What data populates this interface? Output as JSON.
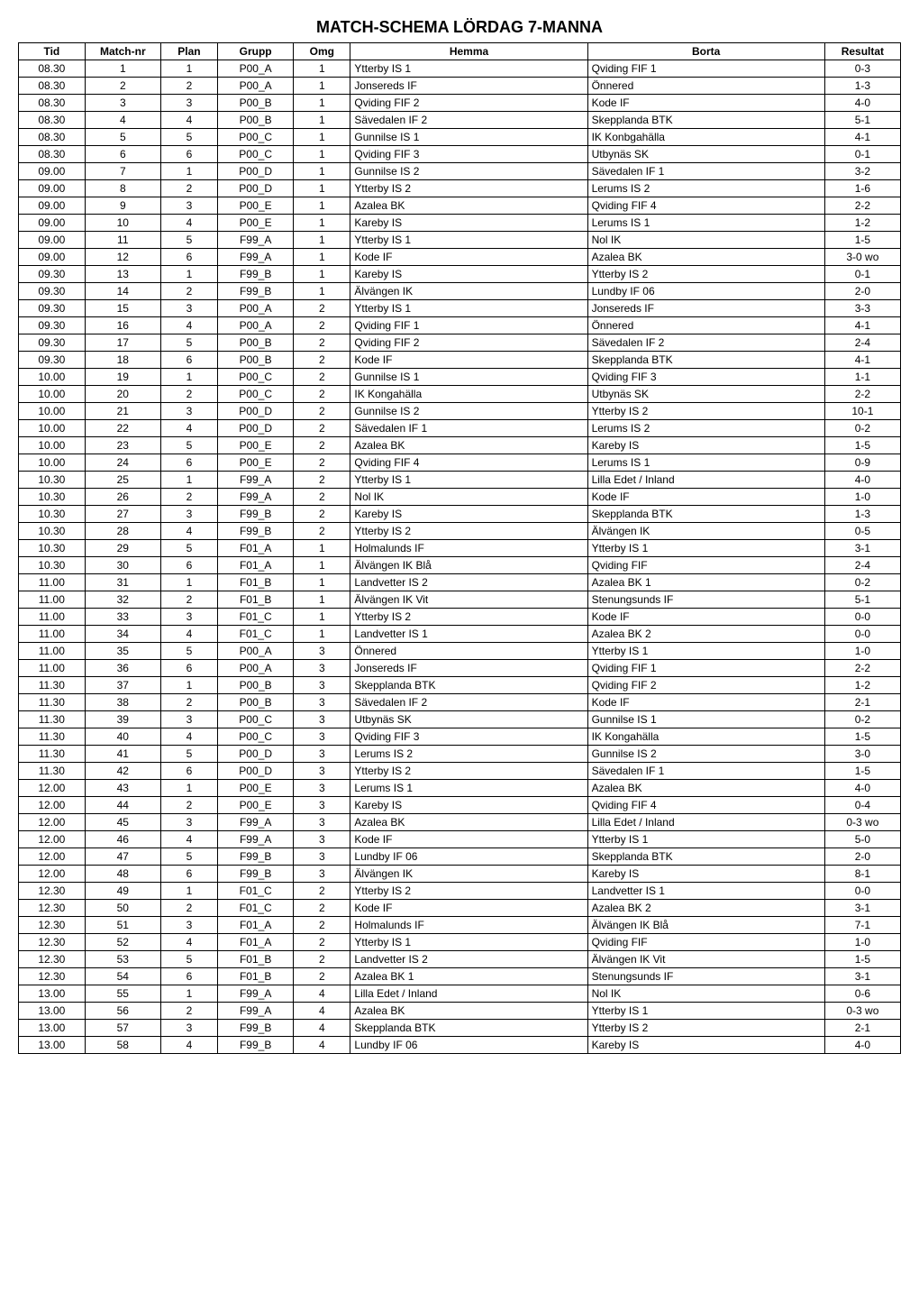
{
  "title": "MATCH-SCHEMA LÖRDAG 7-MANNA",
  "columns": [
    "Tid",
    "Match-nr",
    "Plan",
    "Grupp",
    "Omg",
    "Hemma",
    "Borta",
    "Resultat"
  ],
  "col_align": [
    "center",
    "center",
    "center",
    "center",
    "center",
    "left",
    "left",
    "center"
  ],
  "rows": [
    [
      "08.30",
      "1",
      "1",
      "P00_A",
      "1",
      "Ytterby IS 1",
      "Qviding FIF 1",
      "0-3"
    ],
    [
      "08.30",
      "2",
      "2",
      "P00_A",
      "1",
      "Jonsereds IF",
      "Önnered",
      "1-3"
    ],
    [
      "08.30",
      "3",
      "3",
      "P00_B",
      "1",
      "Qviding FIF 2",
      "Kode IF",
      "4-0"
    ],
    [
      "08.30",
      "4",
      "4",
      "P00_B",
      "1",
      "Sävedalen IF 2",
      "Skepplanda BTK",
      "5-1"
    ],
    [
      "08.30",
      "5",
      "5",
      "P00_C",
      "1",
      "Gunnilse IS 1",
      "IK Konbgahälla",
      "4-1"
    ],
    [
      "08.30",
      "6",
      "6",
      "P00_C",
      "1",
      "Qviding FIF 3",
      "Utbynäs SK",
      "0-1"
    ],
    [
      "09.00",
      "7",
      "1",
      "P00_D",
      "1",
      "Gunnilse IS 2",
      "Sävedalen IF 1",
      "3-2"
    ],
    [
      "09.00",
      "8",
      "2",
      "P00_D",
      "1",
      "Ytterby IS 2",
      "Lerums IS 2",
      "1-6"
    ],
    [
      "09.00",
      "9",
      "3",
      "P00_E",
      "1",
      "Azalea BK",
      "Qviding FIF 4",
      "2-2"
    ],
    [
      "09.00",
      "10",
      "4",
      "P00_E",
      "1",
      "Kareby IS",
      "Lerums IS 1",
      "1-2"
    ],
    [
      "09.00",
      "11",
      "5",
      "F99_A",
      "1",
      "Ytterby IS 1",
      "Nol IK",
      "1-5"
    ],
    [
      "09.00",
      "12",
      "6",
      "F99_A",
      "1",
      "Kode IF",
      "Azalea BK",
      "3-0 wo"
    ],
    [
      "09.30",
      "13",
      "1",
      "F99_B",
      "1",
      "Kareby IS",
      "Ytterby IS 2",
      "0-1"
    ],
    [
      "09.30",
      "14",
      "2",
      "F99_B",
      "1",
      "Älvängen IK",
      "Lundby IF 06",
      "2-0"
    ],
    [
      "09.30",
      "15",
      "3",
      "P00_A",
      "2",
      "Ytterby IS 1",
      "Jonsereds IF",
      "3-3"
    ],
    [
      "09.30",
      "16",
      "4",
      "P00_A",
      "2",
      "Qviding FIF 1",
      "Önnered",
      "4-1"
    ],
    [
      "09.30",
      "17",
      "5",
      "P00_B",
      "2",
      "Qviding FIF 2",
      "Sävedalen IF 2",
      "2-4"
    ],
    [
      "09.30",
      "18",
      "6",
      "P00_B",
      "2",
      "Kode IF",
      "Skepplanda BTK",
      "4-1"
    ],
    [
      "10.00",
      "19",
      "1",
      "P00_C",
      "2",
      "Gunnilse IS 1",
      "Qviding FIF 3",
      "1-1"
    ],
    [
      "10.00",
      "20",
      "2",
      "P00_C",
      "2",
      "IK Kongahälla",
      "Utbynäs SK",
      "2-2"
    ],
    [
      "10.00",
      "21",
      "3",
      "P00_D",
      "2",
      "Gunnilse IS 2",
      "Ytterby IS 2",
      "10-1"
    ],
    [
      "10.00",
      "22",
      "4",
      "P00_D",
      "2",
      "Sävedalen IF 1",
      "Lerums IS 2",
      "0-2"
    ],
    [
      "10.00",
      "23",
      "5",
      "P00_E",
      "2",
      "Azalea BK",
      "Kareby IS",
      "1-5"
    ],
    [
      "10.00",
      "24",
      "6",
      "P00_E",
      "2",
      "Qviding FIF 4",
      "Lerums IS 1",
      "0-9"
    ],
    [
      "10.30",
      "25",
      "1",
      "F99_A",
      "2",
      "Ytterby IS 1",
      "Lilla Edet / Inland",
      "4-0"
    ],
    [
      "10.30",
      "26",
      "2",
      "F99_A",
      "2",
      "Nol IK",
      "Kode IF",
      "1-0"
    ],
    [
      "10.30",
      "27",
      "3",
      "F99_B",
      "2",
      "Kareby IS",
      "Skepplanda BTK",
      "1-3"
    ],
    [
      "10.30",
      "28",
      "4",
      "F99_B",
      "2",
      "Ytterby IS 2",
      "Älvängen IK",
      "0-5"
    ],
    [
      "10.30",
      "29",
      "5",
      "F01_A",
      "1",
      "Holmalunds IF",
      "Ytterby IS 1",
      "3-1"
    ],
    [
      "10.30",
      "30",
      "6",
      "F01_A",
      "1",
      "Älvängen IK Blå",
      "Qviding FIF",
      "2-4"
    ],
    [
      "11.00",
      "31",
      "1",
      "F01_B",
      "1",
      "Landvetter IS 2",
      "Azalea BK 1",
      "0-2"
    ],
    [
      "11.00",
      "32",
      "2",
      "F01_B",
      "1",
      "Älvängen IK Vit",
      "Stenungsunds IF",
      "5-1"
    ],
    [
      "11.00",
      "33",
      "3",
      "F01_C",
      "1",
      "Ytterby IS 2",
      "Kode IF",
      "0-0"
    ],
    [
      "11.00",
      "34",
      "4",
      "F01_C",
      "1",
      "Landvetter IS 1",
      "Azalea BK 2",
      "0-0"
    ],
    [
      "11.00",
      "35",
      "5",
      "P00_A",
      "3",
      "Önnered",
      "Ytterby IS 1",
      "1-0"
    ],
    [
      "11.00",
      "36",
      "6",
      "P00_A",
      "3",
      "Jonsereds IF",
      "Qviding FIF 1",
      "2-2"
    ],
    [
      "11.30",
      "37",
      "1",
      "P00_B",
      "3",
      "Skepplanda BTK",
      "Qviding FIF 2",
      "1-2"
    ],
    [
      "11.30",
      "38",
      "2",
      "P00_B",
      "3",
      "Sävedalen IF 2",
      "Kode IF",
      "2-1"
    ],
    [
      "11.30",
      "39",
      "3",
      "P00_C",
      "3",
      "Utbynäs SK",
      "Gunnilse IS 1",
      "0-2"
    ],
    [
      "11.30",
      "40",
      "4",
      "P00_C",
      "3",
      "Qviding FIF 3",
      "IK Kongahälla",
      "1-5"
    ],
    [
      "11.30",
      "41",
      "5",
      "P00_D",
      "3",
      "Lerums IS 2",
      "Gunnilse IS 2",
      "3-0"
    ],
    [
      "11.30",
      "42",
      "6",
      "P00_D",
      "3",
      "Ytterby IS 2",
      "Sävedalen IF 1",
      "1-5"
    ],
    [
      "12.00",
      "43",
      "1",
      "P00_E",
      "3",
      "Lerums IS 1",
      "Azalea BK",
      "4-0"
    ],
    [
      "12.00",
      "44",
      "2",
      "P00_E",
      "3",
      "Kareby IS",
      "Qviding FIF 4",
      "0-4"
    ],
    [
      "12.00",
      "45",
      "3",
      "F99_A",
      "3",
      "Azalea BK",
      "Lilla Edet / Inland",
      "0-3 wo"
    ],
    [
      "12.00",
      "46",
      "4",
      "F99_A",
      "3",
      "Kode IF",
      "Ytterby IS 1",
      "5-0"
    ],
    [
      "12.00",
      "47",
      "5",
      "F99_B",
      "3",
      "Lundby IF 06",
      "Skepplanda BTK",
      "2-0"
    ],
    [
      "12.00",
      "48",
      "6",
      "F99_B",
      "3",
      "Älvängen IK",
      "Kareby IS",
      "8-1"
    ],
    [
      "12.30",
      "49",
      "1",
      "F01_C",
      "2",
      "Ytterby IS 2",
      "Landvetter IS 1",
      "0-0"
    ],
    [
      "12.30",
      "50",
      "2",
      "F01_C",
      "2",
      "Kode IF",
      "Azalea BK 2",
      "3-1"
    ],
    [
      "12.30",
      "51",
      "3",
      "F01_A",
      "2",
      "Holmalunds IF",
      "Älvängen IK Blå",
      "7-1"
    ],
    [
      "12.30",
      "52",
      "4",
      "F01_A",
      "2",
      "Ytterby IS 1",
      "Qviding FIF",
      "1-0"
    ],
    [
      "12.30",
      "53",
      "5",
      "F01_B",
      "2",
      "Landvetter IS 2",
      "Älvängen IK Vit",
      "1-5"
    ],
    [
      "12.30",
      "54",
      "6",
      "F01_B",
      "2",
      "Azalea BK 1",
      "Stenungsunds IF",
      "3-1"
    ],
    [
      "13.00",
      "55",
      "1",
      "F99_A",
      "4",
      "Lilla Edet / Inland",
      "Nol IK",
      "0-6"
    ],
    [
      "13.00",
      "56",
      "2",
      "F99_A",
      "4",
      "Azalea BK",
      "Ytterby IS 1",
      "0-3 wo"
    ],
    [
      "13.00",
      "57",
      "3",
      "F99_B",
      "4",
      "Skepplanda BTK",
      "Ytterby IS 2",
      "2-1"
    ],
    [
      "13.00",
      "58",
      "4",
      "F99_B",
      "4",
      "Lundby IF 06",
      "Kareby IS",
      "4-0"
    ]
  ],
  "style": {
    "border_color": "#000000",
    "background_color": "#ffffff",
    "header_fontsize": 12,
    "cell_fontsize": 12,
    "title_fontsize": 18
  }
}
